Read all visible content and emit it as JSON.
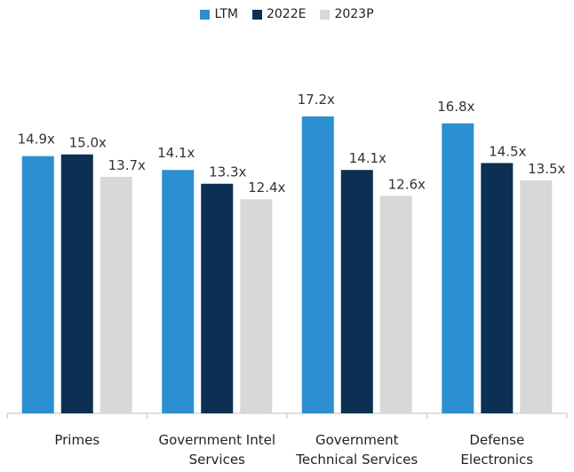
{
  "chart_data": {
    "type": "bar",
    "categories": [
      [
        "Primes"
      ],
      [
        "Government Intel",
        "Services"
      ],
      [
        "Government",
        "Technical Services"
      ],
      [
        "Defense",
        "Electronics"
      ]
    ],
    "series": [
      {
        "name": "LTM",
        "color": "#2b8fd1",
        "values": [
          14.9,
          14.1,
          17.2,
          16.8
        ],
        "labels": [
          "14.9x",
          "14.1x",
          "17.2x",
          "16.8x"
        ]
      },
      {
        "name": "2022E",
        "color": "#0c3053",
        "values": [
          15.0,
          13.3,
          14.1,
          14.5
        ],
        "labels": [
          "15.0x",
          "13.3x",
          "14.1x",
          "14.5x"
        ]
      },
      {
        "name": "2023P",
        "color": "#d8d8d8",
        "values": [
          13.7,
          12.4,
          12.6,
          13.5
        ],
        "labels": [
          "13.7x",
          "12.4x",
          "12.6x",
          "13.5x"
        ]
      }
    ],
    "title": "",
    "xlabel": "",
    "ylabel": "",
    "ylim": [
      0,
      18
    ],
    "grid": false,
    "legend_position": "top-center"
  }
}
